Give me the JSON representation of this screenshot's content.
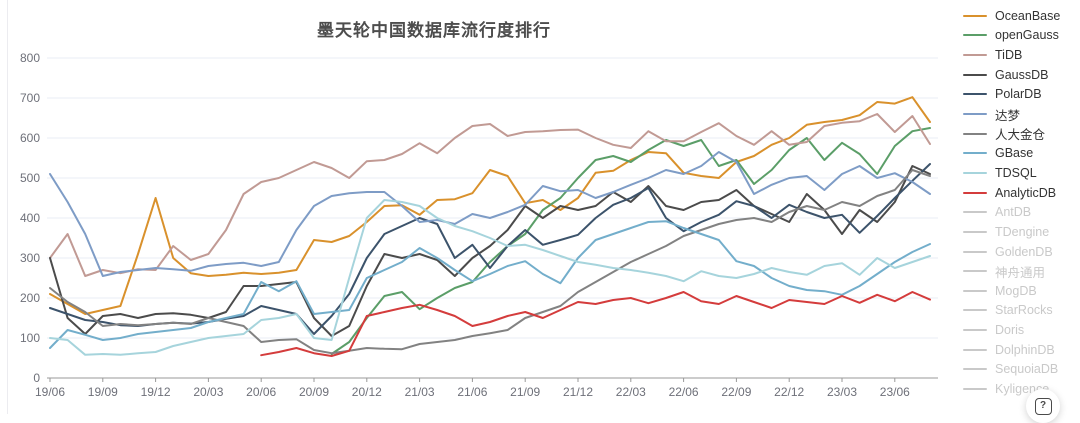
{
  "title": "墨天轮中国数据库流行度排行",
  "help_button": {
    "icon": "?"
  },
  "chart_data": {
    "type": "line",
    "title": "墨天轮中国数据库流行度排行",
    "xlabel": "",
    "ylabel": "",
    "ylim": [
      0,
      800
    ],
    "y_ticks": [
      0,
      100,
      200,
      300,
      400,
      500,
      600,
      700,
      800
    ],
    "grid": true,
    "legend_position": "right",
    "x_tick_every": 3,
    "x_tick_labels": [
      "19/06",
      "19/09",
      "19/12",
      "20/03",
      "20/06",
      "20/09",
      "20/12",
      "21/03",
      "21/06",
      "21/09",
      "21/12",
      "22/03",
      "22/06",
      "22/09",
      "22/12",
      "23/03",
      "23/06"
    ],
    "x": [
      "19/06",
      "19/07",
      "19/08",
      "19/09",
      "19/10",
      "19/11",
      "19/12",
      "20/01",
      "20/02",
      "20/03",
      "20/04",
      "20/05",
      "20/06",
      "20/07",
      "20/08",
      "20/09",
      "20/10",
      "20/11",
      "20/12",
      "21/01",
      "21/02",
      "21/03",
      "21/04",
      "21/05",
      "21/06",
      "21/07",
      "21/08",
      "21/09",
      "21/10",
      "21/11",
      "21/12",
      "22/01",
      "22/02",
      "22/03",
      "22/04",
      "22/05",
      "22/06",
      "22/07",
      "22/08",
      "22/09",
      "22/10",
      "22/11",
      "22/12",
      "23/01",
      "23/02",
      "23/03",
      "23/04",
      "23/05",
      "23/06",
      "23/07",
      "23/08"
    ],
    "colors": {
      "grid": "#e9eef6",
      "axis": "#999999",
      "tick_label": "#6e7079",
      "inactive": "#c9c9c9"
    },
    "series": [
      {
        "name": "OceanBase",
        "color": "#d9912c",
        "active": true,
        "values": [
          210,
          185,
          160,
          170,
          180,
          310,
          450,
          300,
          262,
          255,
          258,
          263,
          260,
          263,
          270,
          345,
          340,
          355,
          390,
          430,
          432,
          408,
          445,
          447,
          462,
          520,
          505,
          437,
          445,
          420,
          450,
          513,
          518,
          545,
          565,
          562,
          513,
          505,
          500,
          540,
          555,
          583,
          600,
          633,
          640,
          645,
          657,
          690,
          686,
          702,
          640
        ]
      },
      {
        "name": "openGauss",
        "color": "#5b9e68",
        "active": true,
        "values": [
          null,
          null,
          null,
          null,
          null,
          null,
          null,
          null,
          null,
          null,
          null,
          null,
          null,
          null,
          null,
          null,
          60,
          90,
          150,
          205,
          215,
          172,
          200,
          225,
          240,
          290,
          330,
          360,
          420,
          450,
          500,
          545,
          555,
          540,
          570,
          595,
          580,
          595,
          530,
          545,
          485,
          520,
          570,
          600,
          545,
          588,
          560,
          510,
          580,
          617,
          625
        ]
      },
      {
        "name": "TiDB",
        "color": "#c19a94",
        "active": true,
        "values": [
          300,
          360,
          255,
          270,
          262,
          272,
          270,
          330,
          295,
          310,
          370,
          460,
          490,
          500,
          520,
          540,
          525,
          500,
          542,
          545,
          560,
          587,
          562,
          600,
          630,
          635,
          605,
          615,
          617,
          620,
          621,
          600,
          583,
          575,
          617,
          592,
          592,
          615,
          637,
          605,
          583,
          617,
          583,
          590,
          630,
          638,
          642,
          660,
          615,
          655,
          585
        ]
      },
      {
        "name": "GaussDB",
        "color": "#4b4b4b",
        "active": true,
        "values": [
          300,
          150,
          110,
          155,
          160,
          150,
          160,
          162,
          158,
          150,
          165,
          230,
          230,
          235,
          240,
          150,
          105,
          130,
          230,
          310,
          300,
          310,
          295,
          255,
          300,
          330,
          370,
          430,
          400,
          430,
          420,
          430,
          465,
          440,
          480,
          430,
          420,
          440,
          445,
          470,
          430,
          410,
          390,
          460,
          420,
          360,
          420,
          390,
          440,
          530,
          510
        ]
      },
      {
        "name": "PolarDB",
        "color": "#3c536b",
        "active": true,
        "values": [
          175,
          160,
          145,
          140,
          132,
          130,
          135,
          138,
          136,
          140,
          148,
          155,
          180,
          170,
          160,
          110,
          155,
          210,
          300,
          360,
          380,
          400,
          385,
          300,
          333,
          275,
          330,
          370,
          333,
          345,
          358,
          400,
          433,
          450,
          475,
          400,
          367,
          390,
          408,
          442,
          430,
          400,
          433,
          415,
          400,
          408,
          363,
          405,
          450,
          493,
          535
        ]
      },
      {
        "name": "达梦",
        "color": "#7e9cc6",
        "active": true,
        "values": [
          510,
          440,
          360,
          255,
          265,
          270,
          275,
          272,
          268,
          280,
          285,
          288,
          280,
          290,
          370,
          430,
          455,
          462,
          465,
          465,
          430,
          390,
          395,
          385,
          410,
          400,
          415,
          433,
          480,
          467,
          470,
          450,
          465,
          483,
          500,
          520,
          510,
          530,
          565,
          540,
          460,
          483,
          500,
          505,
          470,
          510,
          530,
          500,
          512,
          490,
          460
        ]
      },
      {
        "name": "人大金仓",
        "color": "#828282",
        "active": true,
        "values": [
          225,
          190,
          165,
          130,
          135,
          132,
          135,
          138,
          135,
          150,
          140,
          130,
          90,
          95,
          97,
          70,
          62,
          68,
          75,
          73,
          72,
          85,
          90,
          95,
          105,
          112,
          120,
          150,
          165,
          180,
          215,
          240,
          265,
          290,
          310,
          330,
          355,
          370,
          385,
          395,
          400,
          390,
          415,
          430,
          420,
          440,
          430,
          455,
          470,
          520,
          505
        ]
      },
      {
        "name": "GBase",
        "color": "#73aecb",
        "active": true,
        "values": [
          75,
          120,
          108,
          95,
          100,
          110,
          115,
          120,
          125,
          140,
          150,
          160,
          240,
          217,
          242,
          160,
          165,
          170,
          250,
          270,
          290,
          325,
          300,
          270,
          242,
          260,
          280,
          292,
          260,
          237,
          300,
          345,
          360,
          375,
          390,
          392,
          375,
          360,
          345,
          292,
          280,
          250,
          230,
          220,
          217,
          208,
          230,
          260,
          290,
          315,
          335
        ]
      },
      {
        "name": "TDSQL",
        "color": "#a6d4dc",
        "active": true,
        "values": [
          100,
          95,
          58,
          60,
          58,
          62,
          65,
          80,
          90,
          100,
          105,
          110,
          145,
          150,
          160,
          100,
          95,
          250,
          400,
          445,
          440,
          430,
          400,
          380,
          367,
          350,
          330,
          333,
          320,
          305,
          290,
          283,
          275,
          270,
          263,
          255,
          242,
          267,
          255,
          250,
          260,
          275,
          265,
          258,
          280,
          287,
          258,
          300,
          275,
          290,
          305
        ]
      },
      {
        "name": "AnalyticDB",
        "color": "#d43c3c",
        "active": true,
        "values": [
          null,
          null,
          null,
          null,
          null,
          null,
          null,
          null,
          null,
          null,
          null,
          null,
          57,
          65,
          75,
          62,
          55,
          68,
          155,
          165,
          175,
          183,
          170,
          155,
          130,
          140,
          155,
          165,
          150,
          170,
          190,
          185,
          195,
          200,
          187,
          200,
          215,
          192,
          185,
          205,
          190,
          175,
          195,
          190,
          185,
          205,
          188,
          208,
          192,
          215,
          196
        ]
      },
      {
        "name": "AntDB",
        "color": "#c9c9c9",
        "active": false,
        "values": []
      },
      {
        "name": "TDengine",
        "color": "#c9c9c9",
        "active": false,
        "values": []
      },
      {
        "name": "GoldenDB",
        "color": "#c9c9c9",
        "active": false,
        "values": []
      },
      {
        "name": "神舟通用",
        "color": "#c9c9c9",
        "active": false,
        "values": []
      },
      {
        "name": "MogDB",
        "color": "#c9c9c9",
        "active": false,
        "values": []
      },
      {
        "name": "StarRocks",
        "color": "#c9c9c9",
        "active": false,
        "values": []
      },
      {
        "name": "Doris",
        "color": "#c9c9c9",
        "active": false,
        "values": []
      },
      {
        "name": "DolphinDB",
        "color": "#c9c9c9",
        "active": false,
        "values": []
      },
      {
        "name": "SequoiaDB",
        "color": "#c9c9c9",
        "active": false,
        "values": []
      },
      {
        "name": "Kyligence",
        "color": "#c9c9c9",
        "active": false,
        "values": []
      }
    ]
  }
}
